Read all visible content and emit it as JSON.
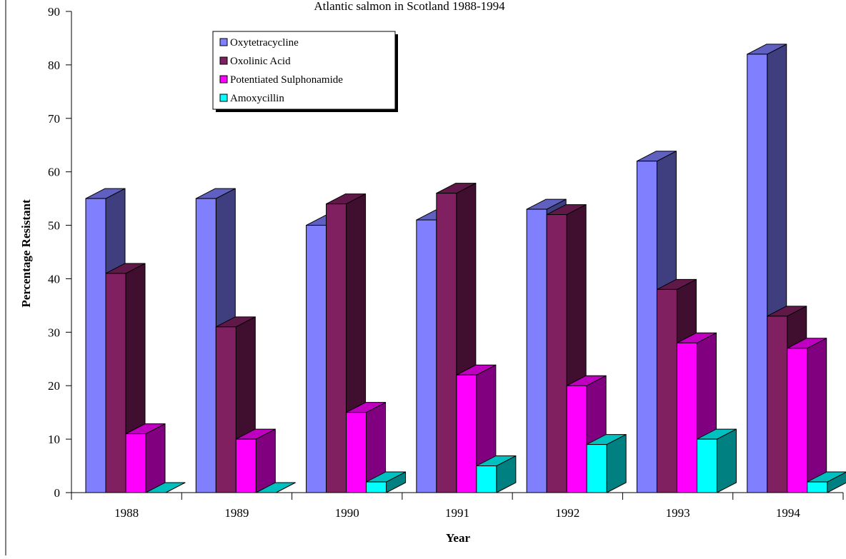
{
  "chart_data": {
    "type": "bar",
    "title": "Atlantic salmon in Scotland 1988-1994",
    "xlabel": "Year",
    "ylabel": "Percentage Resistant",
    "ylim": [
      0,
      90
    ],
    "yticks": [
      0,
      10,
      20,
      30,
      40,
      50,
      60,
      70,
      80,
      90
    ],
    "categories": [
      "1988",
      "1989",
      "1990",
      "1991",
      "1992",
      "1993",
      "1994"
    ],
    "three_d": true,
    "grid": false,
    "legend_position": "top-left",
    "series": [
      {
        "name": "Oxytetracycline",
        "values": [
          55,
          55,
          50,
          51,
          53,
          62,
          82
        ],
        "color": "#8080ff",
        "side_color": "#3f3f80",
        "top_color": "#6060c0"
      },
      {
        "name": "Oxolinic Acid",
        "values": [
          41,
          31,
          54,
          56,
          52,
          38,
          33
        ],
        "color": "#802060",
        "side_color": "#400f30",
        "top_color": "#601848"
      },
      {
        "name": "Potentiated Sulphonamide",
        "values": [
          11,
          10,
          15,
          22,
          20,
          28,
          27
        ],
        "color": "#ff00ff",
        "side_color": "#800080",
        "top_color": "#c000c0"
      },
      {
        "name": "Amoxycillin",
        "values": [
          0,
          0,
          2,
          5,
          9,
          10,
          2
        ],
        "color": "#00ffff",
        "side_color": "#008080",
        "top_color": "#00c0c0"
      }
    ]
  }
}
